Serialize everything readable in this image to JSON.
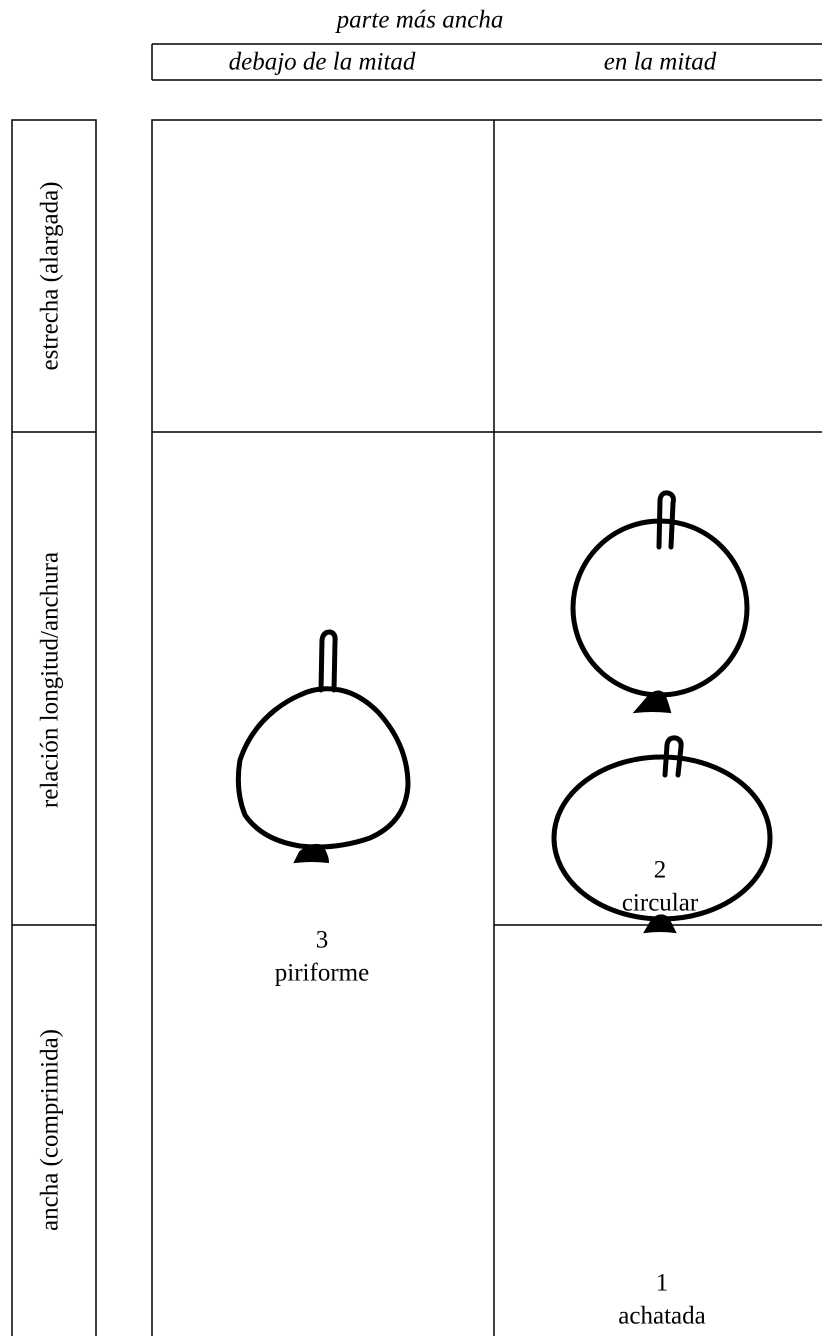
{
  "header": {
    "title": "parte más ancha",
    "columns": [
      "debajo de la mitad",
      "en la mitad"
    ]
  },
  "rows": {
    "title": "relación longitud/anchura",
    "labels": [
      "estrecha (alargada)",
      "ancha (comprimida)"
    ]
  },
  "shapes": [
    {
      "code": 3,
      "label": "piriforme"
    },
    {
      "code": 2,
      "label": "circular"
    },
    {
      "code": 1,
      "label": "achatada"
    }
  ]
}
